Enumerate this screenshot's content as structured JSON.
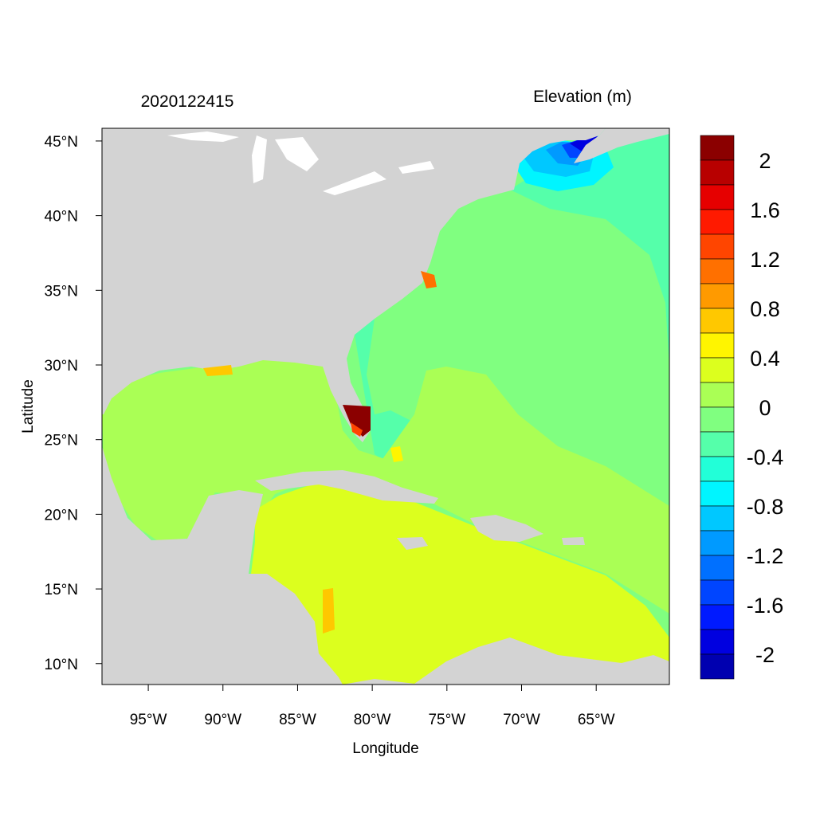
{
  "map": {
    "title_left": "2020122415",
    "title_right": "Elevation (m)",
    "xlabel": "Longitude",
    "ylabel": "Latitude",
    "lon_range": [
      -98.1,
      -60.1
    ],
    "lat_range": [
      8.6,
      45.85
    ],
    "x_ticks": [
      {
        "value": -95,
        "label": "95°W"
      },
      {
        "value": -90,
        "label": "90°W"
      },
      {
        "value": -85,
        "label": "85°W"
      },
      {
        "value": -80,
        "label": "80°W"
      },
      {
        "value": -75,
        "label": "75°W"
      },
      {
        "value": -70,
        "label": "70°W"
      },
      {
        "value": -65,
        "label": "65°W"
      }
    ],
    "y_ticks": [
      {
        "value": 45,
        "label": "45°N"
      },
      {
        "value": 40,
        "label": "40°N"
      },
      {
        "value": 35,
        "label": "35°N"
      },
      {
        "value": 30,
        "label": "30°N"
      },
      {
        "value": 25,
        "label": "25°N"
      },
      {
        "value": 20,
        "label": "20°N"
      },
      {
        "value": 15,
        "label": "15°N"
      },
      {
        "value": 10,
        "label": "10°N"
      }
    ],
    "land_color": "#D3D3D3",
    "zone_colors": {
      "atlantic": "#80FF80",
      "gulf": "#AAFF55",
      "caribbean": "#DCFF1E",
      "northeast": "#55FFAA",
      "maine_1": "#00F5FF",
      "maine_2": "#00C8FF",
      "maine_3": "#009AFF",
      "maine_4": "#0045FF",
      "maine_5": "#0000E0",
      "florida": "#8B0000"
    }
  },
  "colorbar": {
    "colors": [
      "#8B0000",
      "#B80000",
      "#E60000",
      "#FF1A00",
      "#FF4500",
      "#FF7000",
      "#FF9A00",
      "#FFC800",
      "#FFF500",
      "#DCFF1E",
      "#AAFF55",
      "#80FF80",
      "#55FFAA",
      "#22FFD8",
      "#00F5FF",
      "#00C8FF",
      "#009AFF",
      "#0070FF",
      "#0045FF",
      "#001AFF",
      "#0000E0",
      "#0000B0"
    ],
    "labels": [
      "2",
      "1.6",
      "1.2",
      "0.8",
      "0.4",
      "0",
      "-0.4",
      "-0.8",
      "-1.2",
      "-1.6",
      "-2"
    ]
  }
}
